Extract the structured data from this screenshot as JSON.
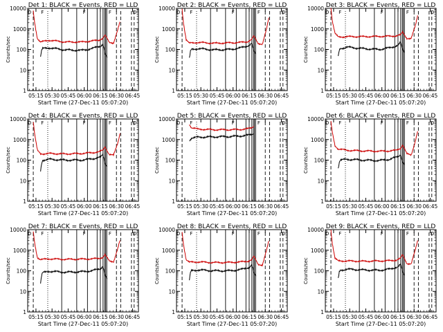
{
  "chart_data": {
    "type": "line",
    "layout": "3x3 grid",
    "xlabel": "Start Time (27-Dec-11 05:07:20)",
    "ylabel": "Counts/sec",
    "x_ticks": [
      "05:15",
      "05:30",
      "05:45",
      "06:00",
      "06:15",
      "06:30",
      "06:45"
    ],
    "x_range": [
      "05:07",
      "06:50"
    ],
    "y_scale": "log",
    "y_range": [
      1,
      10000
    ],
    "y_ticks": [
      "1",
      "10",
      "100",
      "1000",
      "10000"
    ],
    "series_colors": {
      "events": "#000000",
      "lld": "#cc0000"
    },
    "state_markers": [
      "D",
      "F",
      "F",
      "F",
      "D"
    ],
    "panels": [
      {
        "title": "Det 1: BLACK = Events, RED = LLD",
        "x_ticks": [
          "05:15",
          "05:30",
          "05:45",
          "06:00",
          "06:15",
          "06:30",
          "06:45"
        ],
        "red": [
          [
            5.2,
            8000
          ],
          [
            6.5,
            2000
          ],
          [
            9,
            350
          ],
          [
            12,
            230
          ],
          [
            20,
            280
          ],
          [
            35,
            230
          ],
          [
            50,
            230
          ],
          [
            60,
            260
          ],
          [
            66,
            280
          ],
          [
            70,
            350
          ],
          [
            72,
            500
          ],
          [
            76,
            220
          ],
          [
            80,
            210
          ],
          [
            84,
            900
          ],
          [
            86,
            2200
          ]
        ],
        "black": [
          [
            12,
            45
          ],
          [
            13,
            90
          ],
          [
            14,
            110
          ],
          [
            20,
            120
          ],
          [
            35,
            95
          ],
          [
            50,
            90
          ],
          [
            60,
            110
          ],
          [
            68,
            150
          ],
          [
            70,
            180
          ],
          [
            71,
            120
          ],
          [
            72,
            60
          ],
          [
            74,
            40
          ]
        ]
      },
      {
        "title": "Det 2: BLACK = Events, RED = LLD",
        "x_ticks": [
          "05:15",
          "05:30",
          "05:45",
          "06:00",
          "06:15",
          "06:30",
          "06:45"
        ],
        "red": [
          [
            5.2,
            9000
          ],
          [
            6.5,
            2000
          ],
          [
            9,
            300
          ],
          [
            12,
            200
          ],
          [
            20,
            220
          ],
          [
            35,
            200
          ],
          [
            50,
            210
          ],
          [
            60,
            220
          ],
          [
            66,
            240
          ],
          [
            70,
            300
          ],
          [
            72,
            450
          ],
          [
            76,
            200
          ],
          [
            80,
            180
          ],
          [
            84,
            1000
          ],
          [
            86,
            3500
          ]
        ],
        "black": [
          [
            12,
            35
          ],
          [
            13,
            80
          ],
          [
            14,
            100
          ],
          [
            20,
            110
          ],
          [
            35,
            95
          ],
          [
            50,
            100
          ],
          [
            60,
            120
          ],
          [
            68,
            160
          ],
          [
            70,
            200
          ],
          [
            71,
            130
          ],
          [
            72,
            80
          ],
          [
            74,
            60
          ]
        ]
      },
      {
        "title": "Det 3: BLACK = Events, RED = LLD",
        "x_ticks": [
          "05:15",
          "05:30",
          "05:45",
          "06:00",
          "06:15",
          "06:30",
          "06:45"
        ],
        "red": [
          [
            5.2,
            10000
          ],
          [
            6.5,
            2500
          ],
          [
            9,
            600
          ],
          [
            12,
            400
          ],
          [
            20,
            420
          ],
          [
            35,
            420
          ],
          [
            50,
            430
          ],
          [
            60,
            440
          ],
          [
            66,
            460
          ],
          [
            70,
            500
          ],
          [
            72,
            700
          ],
          [
            76,
            350
          ],
          [
            80,
            330
          ],
          [
            84,
            1500
          ],
          [
            86,
            4500
          ]
        ],
        "black": [
          [
            12,
            45
          ],
          [
            13,
            90
          ],
          [
            14,
            110
          ],
          [
            20,
            130
          ],
          [
            35,
            110
          ],
          [
            50,
            100
          ],
          [
            60,
            120
          ],
          [
            68,
            160
          ],
          [
            70,
            220
          ],
          [
            71,
            150
          ],
          [
            72,
            100
          ],
          [
            74,
            70
          ]
        ]
      },
      {
        "title": "Det 4: BLACK = Events, RED = LLD",
        "x_ticks": [
          "05:15",
          "05:30",
          "05:45",
          "06:00",
          "06:15",
          "06:30",
          "06:45"
        ],
        "red": [
          [
            5.2,
            7000
          ],
          [
            6.5,
            1800
          ],
          [
            9,
            300
          ],
          [
            12,
            200
          ],
          [
            20,
            210
          ],
          [
            35,
            200
          ],
          [
            50,
            210
          ],
          [
            60,
            230
          ],
          [
            66,
            250
          ],
          [
            70,
            300
          ],
          [
            72,
            450
          ],
          [
            76,
            190
          ],
          [
            80,
            170
          ],
          [
            84,
            700
          ],
          [
            86,
            2000
          ]
        ],
        "black": [
          [
            12,
            30
          ],
          [
            13,
            70
          ],
          [
            14,
            100
          ],
          [
            20,
            110
          ],
          [
            35,
            100
          ],
          [
            50,
            100
          ],
          [
            60,
            115
          ],
          [
            68,
            140
          ],
          [
            70,
            180
          ],
          [
            71,
            120
          ],
          [
            72,
            70
          ],
          [
            74,
            50
          ]
        ]
      },
      {
        "title": "Det 5: BLACK = Events, RED = LLD",
        "x_ticks": [
          "05:15",
          "05:30",
          "05:45",
          "06:00",
          "06:15",
          "06:30",
          "06:45"
        ],
        "red": [
          [
            12,
            5500
          ],
          [
            14,
            3800
          ],
          [
            20,
            3200
          ],
          [
            35,
            3000
          ],
          [
            50,
            3000
          ],
          [
            60,
            3100
          ],
          [
            66,
            3300
          ],
          [
            70,
            3800
          ],
          [
            72,
            4500
          ]
        ],
        "black": [
          [
            12,
            900
          ],
          [
            14,
            1200
          ],
          [
            20,
            1300
          ],
          [
            35,
            1350
          ],
          [
            50,
            1400
          ],
          [
            60,
            1500
          ],
          [
            66,
            1600
          ],
          [
            70,
            1800
          ],
          [
            72,
            2000
          ]
        ]
      },
      {
        "title": "Det 6: BLACK = Events, RED = LLD",
        "x_ticks": [
          "05:15",
          "05:30",
          "05:45",
          "06:00",
          "06:15",
          "06:30",
          "06:45"
        ],
        "red": [
          [
            5.2,
            8000
          ],
          [
            6.5,
            2200
          ],
          [
            9,
            500
          ],
          [
            12,
            350
          ],
          [
            20,
            300
          ],
          [
            35,
            280
          ],
          [
            50,
            270
          ],
          [
            60,
            280
          ],
          [
            66,
            300
          ],
          [
            70,
            380
          ],
          [
            72,
            550
          ],
          [
            76,
            200
          ],
          [
            80,
            180
          ],
          [
            84,
            900
          ],
          [
            86,
            2500
          ]
        ],
        "black": [
          [
            12,
            40
          ],
          [
            13,
            80
          ],
          [
            14,
            100
          ],
          [
            20,
            110
          ],
          [
            35,
            100
          ],
          [
            50,
            95
          ],
          [
            60,
            110
          ],
          [
            68,
            150
          ],
          [
            70,
            190
          ],
          [
            71,
            130
          ],
          [
            72,
            80
          ],
          [
            74,
            60
          ]
        ]
      },
      {
        "title": "Det 7: BLACK = Events, RED = LLD",
        "x_ticks": [
          "05:15",
          "05:30",
          "05:45",
          "06:00",
          "06:15",
          "06:30",
          "06:45"
        ],
        "red": [
          [
            5.2,
            9000
          ],
          [
            6.5,
            2200
          ],
          [
            9,
            450
          ],
          [
            12,
            350
          ],
          [
            20,
            380
          ],
          [
            35,
            360
          ],
          [
            50,
            370
          ],
          [
            60,
            380
          ],
          [
            66,
            400
          ],
          [
            70,
            450
          ],
          [
            72,
            600
          ],
          [
            76,
            300
          ],
          [
            80,
            280
          ],
          [
            84,
            1200
          ],
          [
            86,
            3000
          ]
        ],
        "black": [
          [
            12,
            25
          ],
          [
            13,
            60
          ],
          [
            14,
            80
          ],
          [
            20,
            95
          ],
          [
            35,
            85
          ],
          [
            50,
            90
          ],
          [
            60,
            100
          ],
          [
            68,
            130
          ],
          [
            70,
            170
          ],
          [
            71,
            110
          ],
          [
            72,
            60
          ],
          [
            74,
            40
          ]
        ]
      },
      {
        "title": "Det 8: BLACK = Events, RED = LLD",
        "x_ticks": [
          "05:15",
          "05:30",
          "05:45",
          "06:00",
          "06:15",
          "06:30",
          "06:45"
        ],
        "red": [
          [
            5.2,
            8000
          ],
          [
            6.5,
            2000
          ],
          [
            9,
            350
          ],
          [
            12,
            260
          ],
          [
            20,
            270
          ],
          [
            35,
            250
          ],
          [
            50,
            255
          ],
          [
            60,
            270
          ],
          [
            66,
            290
          ],
          [
            70,
            340
          ],
          [
            72,
            500
          ],
          [
            76,
            210
          ],
          [
            80,
            190
          ],
          [
            84,
            1000
          ],
          [
            86,
            2800
          ]
        ],
        "black": [
          [
            12,
            35
          ],
          [
            13,
            80
          ],
          [
            14,
            100
          ],
          [
            20,
            110
          ],
          [
            35,
            100
          ],
          [
            50,
            100
          ],
          [
            60,
            115
          ],
          [
            68,
            150
          ],
          [
            70,
            190
          ],
          [
            71,
            130
          ],
          [
            72,
            75
          ],
          [
            74,
            55
          ]
        ]
      },
      {
        "title": "Det 9: BLACK = Events, RED = LLD",
        "x_ticks": [
          "05:15",
          "05:30",
          "05:45",
          "06:00",
          "06:15",
          "06:30",
          "06:45"
        ],
        "red": [
          [
            5.2,
            9000
          ],
          [
            6.5,
            2200
          ],
          [
            9,
            400
          ],
          [
            12,
            300
          ],
          [
            20,
            300
          ],
          [
            35,
            290
          ],
          [
            50,
            300
          ],
          [
            60,
            310
          ],
          [
            66,
            330
          ],
          [
            70,
            400
          ],
          [
            72,
            600
          ],
          [
            76,
            230
          ],
          [
            80,
            210
          ],
          [
            84,
            1100
          ],
          [
            86,
            3000
          ]
        ],
        "black": [
          [
            12,
            40
          ],
          [
            13,
            85
          ],
          [
            14,
            105
          ],
          [
            20,
            120
          ],
          [
            35,
            110
          ],
          [
            50,
            105
          ],
          [
            60,
            120
          ],
          [
            68,
            160
          ],
          [
            70,
            200
          ],
          [
            71,
            140
          ],
          [
            72,
            85
          ],
          [
            74,
            60
          ]
        ]
      }
    ]
  }
}
